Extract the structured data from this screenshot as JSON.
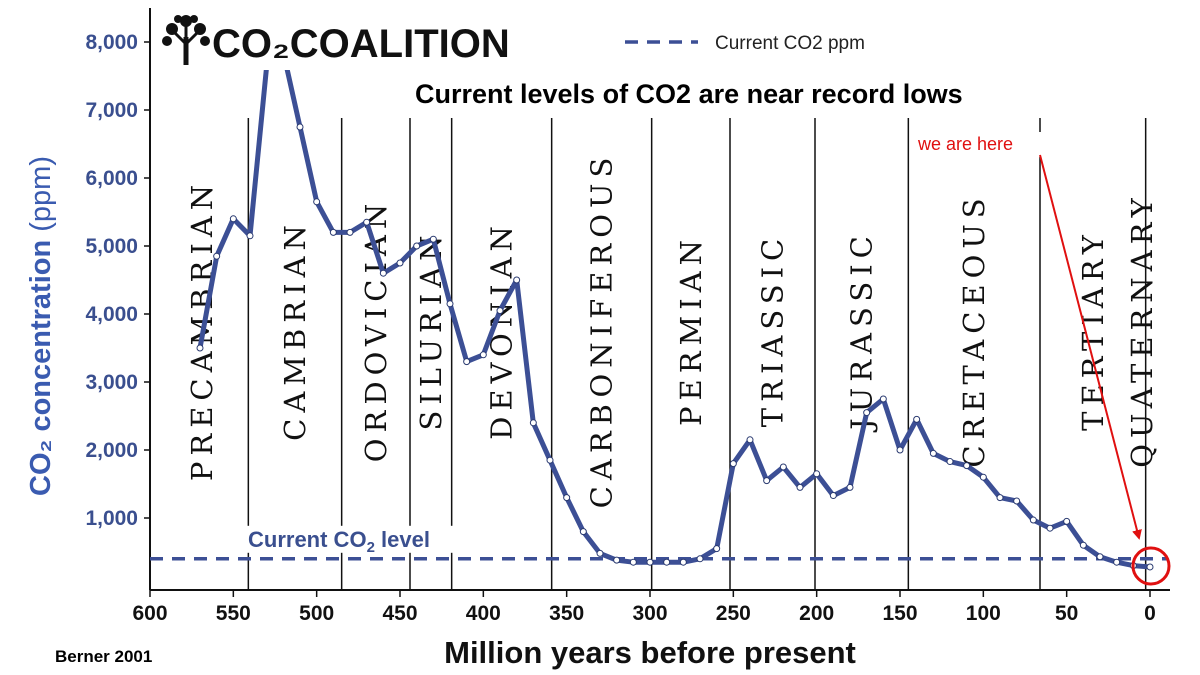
{
  "logo": {
    "text": "CO₂COALITION",
    "icon": "tree-icon"
  },
  "headline": "Current levels of CO2 are near record lows",
  "legend": {
    "label": "Current CO2 ppm"
  },
  "source": "Berner 2001",
  "colors": {
    "series": "#3c4f95",
    "axis_text": "#3a4f8f",
    "ylabel": "#3a5bb0",
    "annotation": "#e01010",
    "gridline": "#111111"
  },
  "chart_data": {
    "type": "line",
    "xlabel": "Million years before present",
    "ylabel": {
      "main": "CO₂ concentration",
      "unit": "(ppm)"
    },
    "xlim": [
      600,
      0
    ],
    "ylim": [
      0,
      8500
    ],
    "x_ticks": [
      600,
      550,
      500,
      450,
      400,
      350,
      300,
      250,
      200,
      150,
      100,
      50,
      0
    ],
    "x_tick_labels": [
      "600",
      "550",
      "500",
      "450",
      "400",
      "350",
      "300",
      "250",
      "200",
      "150",
      "100",
      "50",
      "0"
    ],
    "y_ticks": [
      1000,
      2000,
      3000,
      4000,
      5000,
      6000,
      7000,
      8000
    ],
    "y_tick_labels": [
      "1,000",
      "2,000",
      "3,000",
      "4,000",
      "5,000",
      "6,000",
      "7,000",
      "8,000"
    ],
    "grid": false,
    "series": [
      {
        "x": [
          570,
          560,
          550,
          540,
          530,
          520,
          510,
          500,
          490,
          480,
          470,
          460,
          450,
          440,
          430,
          420,
          410,
          400,
          390,
          380,
          370,
          360,
          350,
          340,
          330,
          320,
          310,
          300,
          290,
          280,
          270,
          260,
          250,
          240,
          230,
          220,
          210,
          200,
          190,
          180,
          170,
          160,
          150,
          140,
          130,
          120,
          110,
          100,
          90,
          80,
          70,
          60,
          50,
          40,
          30,
          20,
          10,
          0
        ],
        "values": [
          3500,
          4850,
          5400,
          5150,
          7650,
          7850,
          6750,
          5650,
          5200,
          5200,
          5350,
          4600,
          4750,
          5000,
          5100,
          4150,
          3300,
          3400,
          4050,
          4500,
          2400,
          1850,
          1300,
          800,
          480,
          380,
          350,
          350,
          350,
          350,
          400,
          550,
          1800,
          2150,
          1550,
          1750,
          1450,
          1650,
          1330,
          1450,
          2550,
          2750,
          2000,
          2450,
          1950,
          1830,
          1770,
          1600,
          1300,
          1250,
          970,
          850,
          950,
          600,
          430,
          350,
          300,
          280
        ]
      }
    ],
    "reference_lines": [
      {
        "label": "Current CO₂ level",
        "y": 400,
        "style": "dashed"
      }
    ],
    "periods": [
      {
        "name": "PRECAMBRIAN",
        "boundary": null
      },
      {
        "name": "CAMBRIAN",
        "boundary": 541
      },
      {
        "name": "ORDOVICIAN",
        "boundary": 485
      },
      {
        "name": "SILURIAN",
        "boundary": 444
      },
      {
        "name": "DEVONIAN",
        "boundary": 419
      },
      {
        "name": "CARBONIFEROUS",
        "boundary": 359
      },
      {
        "name": "PERMIAN",
        "boundary": 299
      },
      {
        "name": "TRIASSIC",
        "boundary": 252
      },
      {
        "name": "JURASSIC",
        "boundary": 201
      },
      {
        "name": "CRETACEOUS",
        "boundary": 145
      },
      {
        "name": "TERTIARY",
        "boundary": 66
      },
      {
        "name": "QUATERNARY",
        "boundary": 2.6
      }
    ],
    "annotations": [
      {
        "text": "we are here",
        "x": 0,
        "y": 280
      }
    ]
  }
}
